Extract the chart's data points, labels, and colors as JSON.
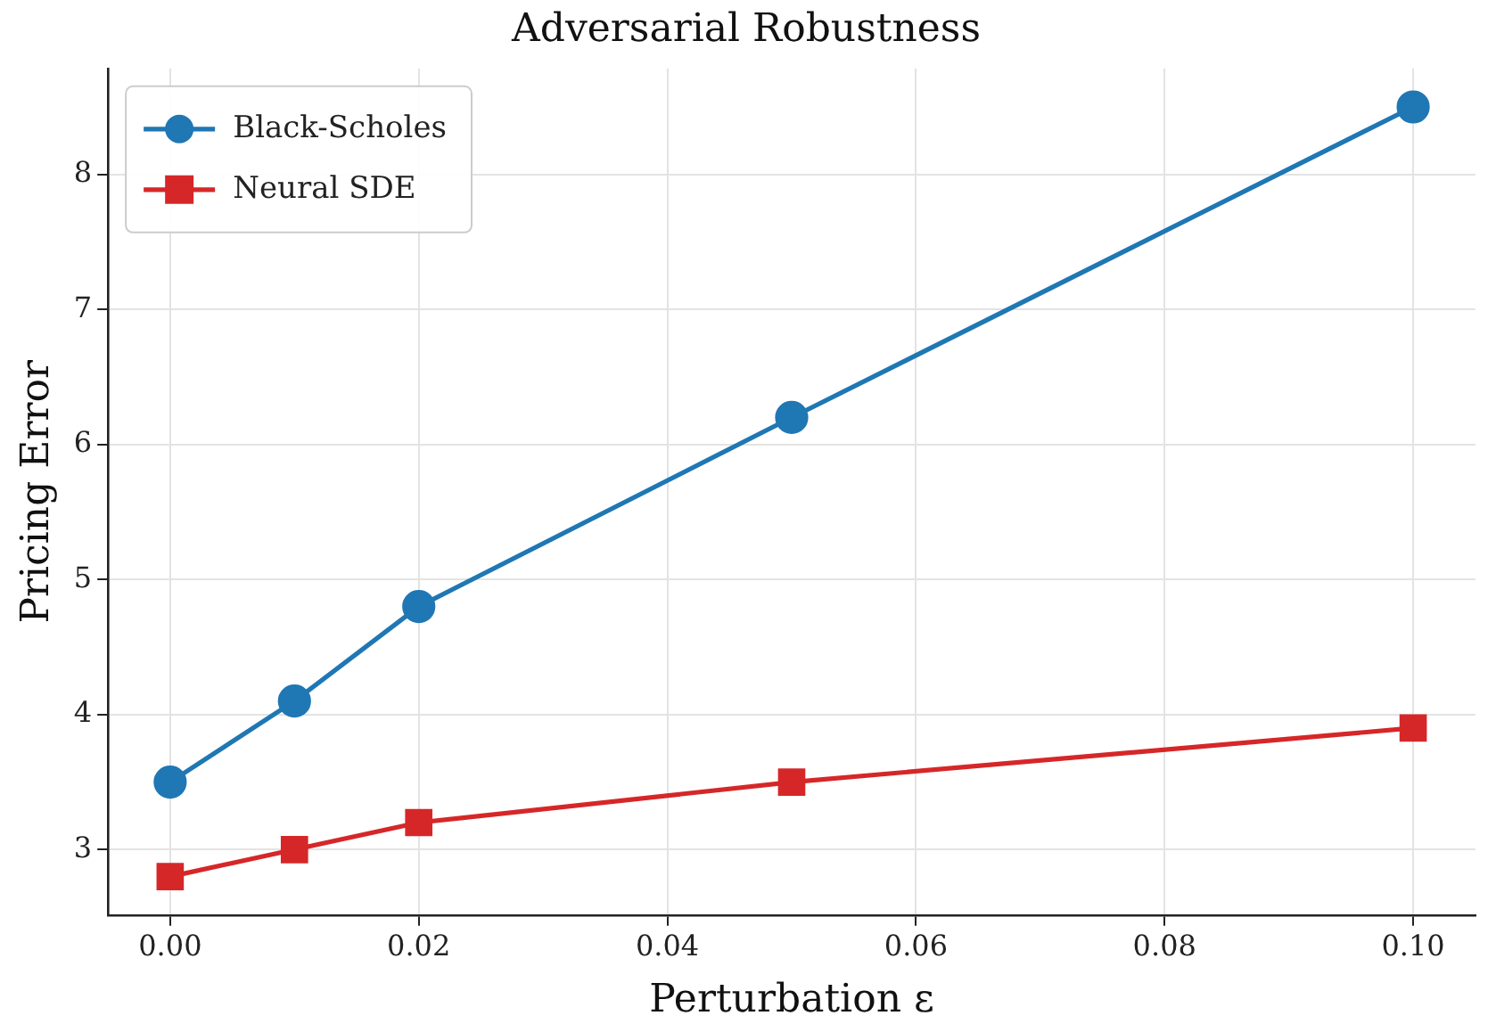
{
  "chart_data": {
    "type": "line",
    "title": "Adversarial Robustness",
    "xlabel": "Perturbation ε",
    "ylabel": "Pricing Error",
    "x": [
      0,
      0.01,
      0.02,
      0.05,
      0.1
    ],
    "series": [
      {
        "name": "Black-Scholes",
        "color": "#1f77b4",
        "marker": "circle",
        "values": [
          3.5,
          4.1,
          4.8,
          6.2,
          8.5
        ]
      },
      {
        "name": "Neural SDE",
        "color": "#d62728",
        "marker": "square",
        "values": [
          2.8,
          3.0,
          3.2,
          3.5,
          3.9
        ]
      }
    ],
    "xlim": [
      -0.005,
      0.105
    ],
    "xticks": [
      {
        "value": 0,
        "label": "0.00"
      },
      {
        "value": 0.02,
        "label": "0.02"
      },
      {
        "value": 0.04,
        "label": "0.04"
      },
      {
        "value": 0.06,
        "label": "0.06"
      },
      {
        "value": 0.08,
        "label": "0.08"
      },
      {
        "value": 0.1,
        "label": "0.10"
      }
    ],
    "ylim": [
      2.515,
      8.785
    ],
    "yticks": [
      3,
      4,
      5,
      6,
      7,
      8
    ],
    "grid": true,
    "legend": "top left",
    "line_style": "solid"
  }
}
